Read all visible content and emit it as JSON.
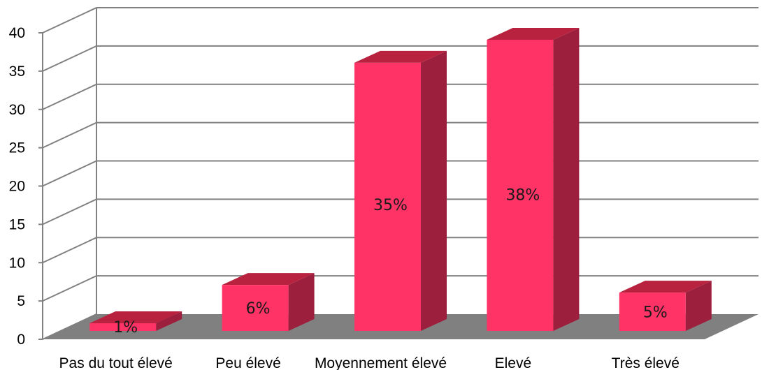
{
  "chart_data": {
    "type": "bar",
    "title": "",
    "xlabel": "",
    "ylabel": "",
    "categories": [
      "Pas du tout élevé",
      "Peu élevé",
      "Moyennement élevé",
      "Elevé",
      "Très élevé"
    ],
    "values": [
      1,
      6,
      35,
      38,
      5
    ],
    "data_labels": [
      "1%",
      "6%",
      "35%",
      "38%",
      "5%"
    ],
    "ylim": [
      0,
      40
    ],
    "yticks": [
      "0",
      "5",
      "10",
      "15",
      "20",
      "25",
      "30",
      "35",
      "40"
    ],
    "grid": true,
    "legend": "none",
    "three_d": true,
    "colors": {
      "bar_front": "#ff3366",
      "bar_side": "#9c1f3d",
      "bar_top": "#b8223f",
      "floor": "#808080",
      "grid": "#808080"
    }
  }
}
